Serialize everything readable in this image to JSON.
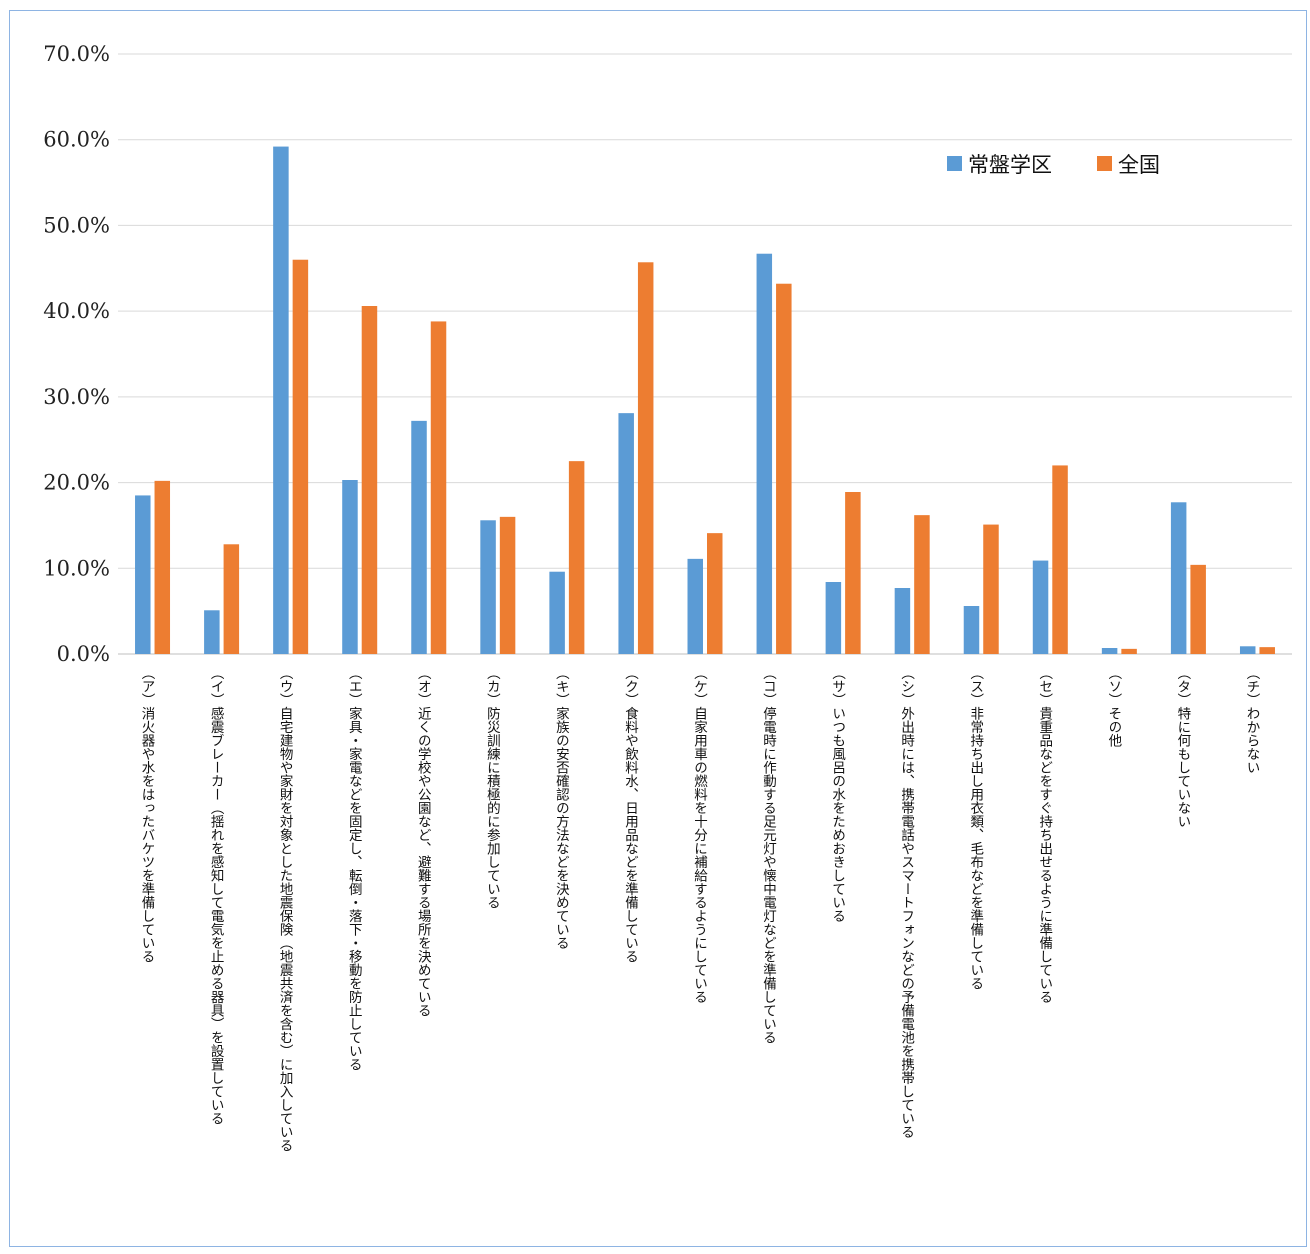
{
  "chart_data": {
    "type": "bar",
    "title": "",
    "xlabel": "",
    "ylabel": "",
    "ylim": [
      0,
      70
    ],
    "y_ticks": [
      "0.0%",
      "10.0%",
      "20.0%",
      "30.0%",
      "40.0%",
      "50.0%",
      "60.0%",
      "70.0%"
    ],
    "grid": true,
    "legend_position": "top-right",
    "categories": [
      "（ア）消火器や水をはったバケツを準備している",
      "（イ）感震ブレーカー（揺れを感知して電気を止める器具）を設置している",
      "（ウ）自宅建物や家財を対象とした地震保険（地震共済を含む）に加入している",
      "（エ）家具・家電などを固定し、転倒・落下・移動を防止している",
      "（オ）近くの学校や公園など、避難する場所を決めている",
      "（カ）防災訓練に積極的に参加している",
      "（キ）家族の安否確認の方法などを決めている",
      "（ク）食料や飲料水、日用品などを準備している",
      "（ケ）自家用車の燃料を十分に補給するようにしている",
      "（コ）停電時に作動する足元灯や懐中電灯などを準備している",
      "（サ）いつも風呂の水をためおきしている",
      "（シ）外出時には、携帯電話やスマートフォンなどの予備電池を携帯している",
      "（ス）非常持ち出し用衣類、毛布などを準備している",
      "（セ）貴重品などをすぐ持ち出せるように準備している",
      "（ソ）その他",
      "（タ）特に何もしていない",
      "（チ）わからない"
    ],
    "series": [
      {
        "name": "常盤学区",
        "color": "#5b9bd5",
        "values": [
          18.5,
          5.1,
          59.2,
          20.3,
          27.2,
          15.6,
          9.6,
          28.1,
          11.1,
          46.7,
          8.4,
          7.7,
          5.6,
          10.9,
          0.7,
          17.7,
          0.9
        ]
      },
      {
        "name": "全国",
        "color": "#ed7d31",
        "values": [
          20.2,
          12.8,
          46.0,
          40.6,
          38.8,
          16.0,
          22.5,
          45.7,
          14.1,
          43.2,
          18.9,
          16.2,
          15.1,
          22.0,
          0.6,
          10.4,
          0.8
        ]
      }
    ]
  }
}
